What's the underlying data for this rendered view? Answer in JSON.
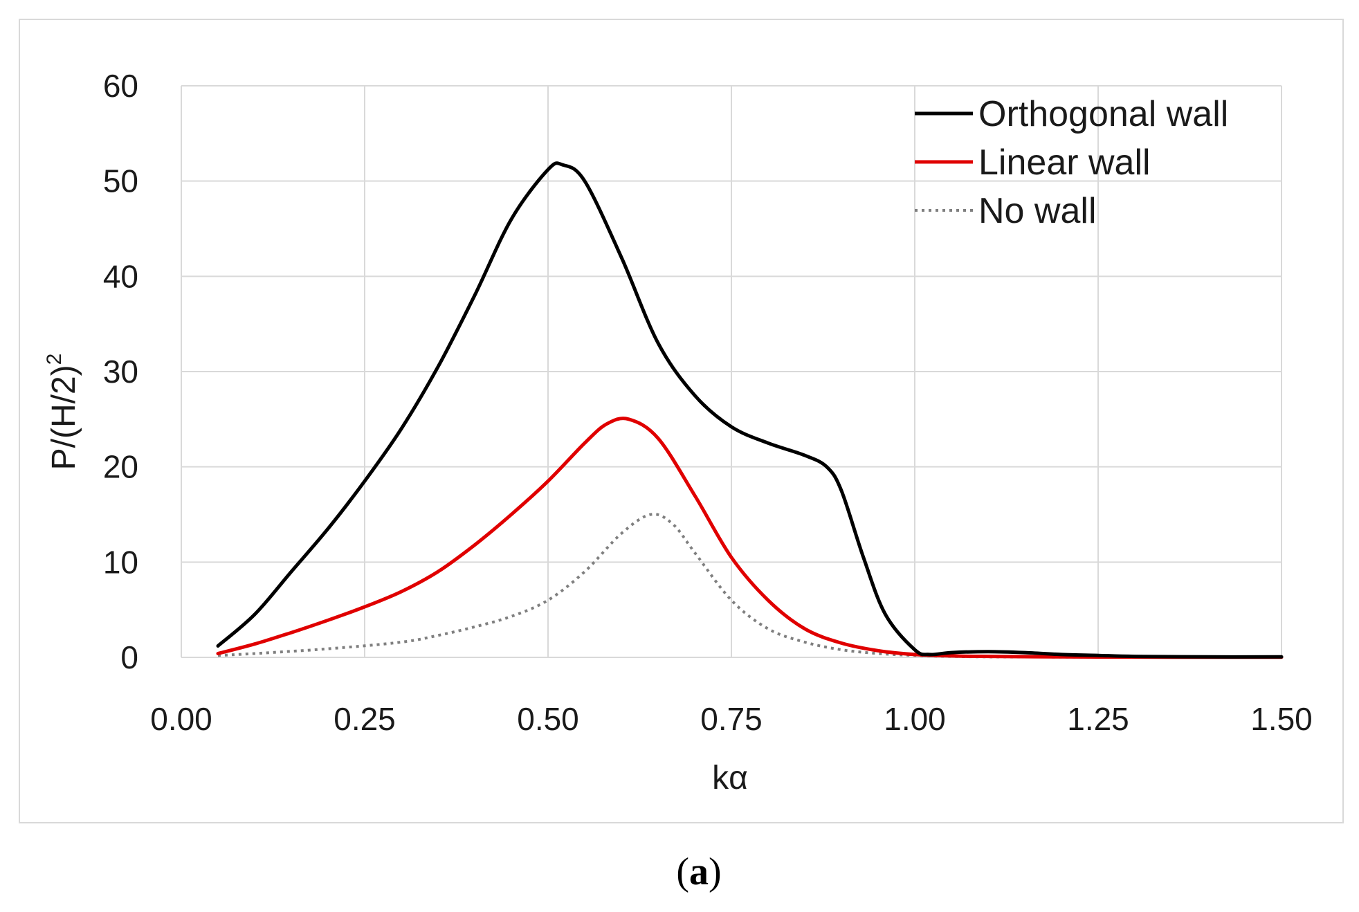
{
  "chart_data": {
    "type": "line",
    "title": "",
    "xlabel": "kα",
    "ylabel": "P/(H/2)",
    "ylabel_superscript": "2",
    "xlim": [
      0,
      1.5
    ],
    "ylim": [
      0,
      60
    ],
    "xticks": [
      "0.00",
      "0.25",
      "0.50",
      "0.75",
      "1.00",
      "1.25",
      "1.50"
    ],
    "xtick_values": [
      0,
      0.25,
      0.5,
      0.75,
      1.0,
      1.25,
      1.5
    ],
    "yticks": [
      "0",
      "10",
      "20",
      "30",
      "40",
      "50",
      "60"
    ],
    "ytick_values": [
      0,
      10,
      20,
      30,
      40,
      50,
      60
    ],
    "grid": true,
    "legend_position": "top-right",
    "series": [
      {
        "name": "Orthogonal wall",
        "color": "#000000",
        "style": "solid",
        "x": [
          0.05,
          0.1,
          0.15,
          0.2,
          0.25,
          0.3,
          0.35,
          0.4,
          0.45,
          0.5,
          0.52,
          0.55,
          0.6,
          0.65,
          0.7,
          0.75,
          0.8,
          0.85,
          0.88,
          0.9,
          0.93,
          0.96,
          1.0,
          1.02,
          1.05,
          1.1,
          1.15,
          1.2,
          1.25,
          1.3,
          1.4,
          1.5
        ],
        "y": [
          1.2,
          4.5,
          9.0,
          13.5,
          18.5,
          24.0,
          30.5,
          38.0,
          46.0,
          51.2,
          51.7,
          50.0,
          42.0,
          33.0,
          27.5,
          24.2,
          22.5,
          21.2,
          20.0,
          17.5,
          10.5,
          4.5,
          0.8,
          0.3,
          0.5,
          0.6,
          0.5,
          0.3,
          0.2,
          0.1,
          0.05,
          0.05
        ]
      },
      {
        "name": "Linear wall",
        "color": "#e00000",
        "style": "solid",
        "x": [
          0.05,
          0.1,
          0.15,
          0.2,
          0.25,
          0.3,
          0.35,
          0.4,
          0.45,
          0.5,
          0.55,
          0.58,
          0.61,
          0.65,
          0.7,
          0.75,
          0.8,
          0.85,
          0.9,
          0.95,
          1.0,
          1.05,
          1.1,
          1.2,
          1.3,
          1.4,
          1.5
        ],
        "y": [
          0.4,
          1.4,
          2.6,
          3.9,
          5.3,
          6.9,
          9.0,
          11.8,
          15.0,
          18.5,
          22.5,
          24.5,
          25.0,
          23.0,
          17.0,
          10.5,
          6.0,
          3.0,
          1.5,
          0.7,
          0.3,
          0.15,
          0.1,
          0.05,
          0.03,
          0.02,
          0.02
        ]
      },
      {
        "name": "No wall",
        "color": "#7f7f7f",
        "style": "dotted",
        "x": [
          0.05,
          0.1,
          0.2,
          0.3,
          0.35,
          0.4,
          0.45,
          0.5,
          0.55,
          0.6,
          0.64,
          0.67,
          0.7,
          0.75,
          0.8,
          0.85,
          0.9,
          0.95,
          1.0,
          1.05,
          1.1,
          1.2,
          1.3,
          1.4,
          1.5
        ],
        "y": [
          0.2,
          0.4,
          0.9,
          1.6,
          2.3,
          3.2,
          4.3,
          6.0,
          9.0,
          13.0,
          15.0,
          14.0,
          11.0,
          6.0,
          3.0,
          1.6,
          0.8,
          0.4,
          0.2,
          0.1,
          0.05,
          0.03,
          0.02,
          0.01,
          0.01
        ]
      }
    ]
  },
  "caption": {
    "open": "(",
    "letter": "a",
    "close": ")"
  }
}
